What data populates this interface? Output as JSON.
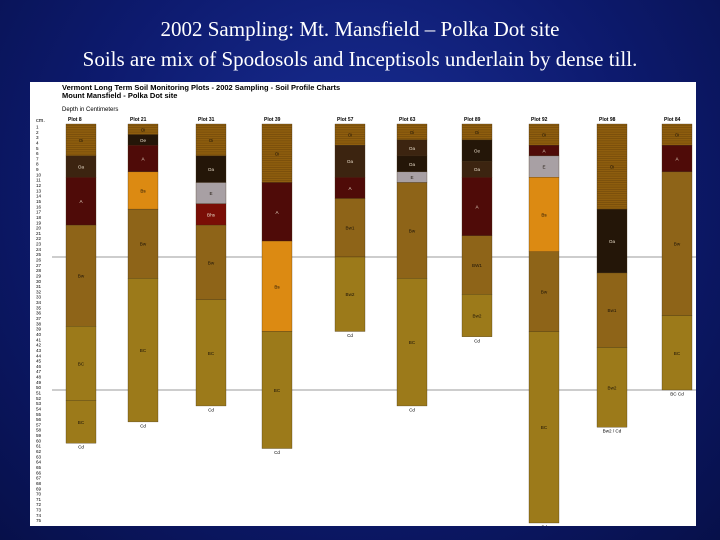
{
  "slide": {
    "title_line1": "2002 Sampling: Mt. Mansfield – Polka Dot site",
    "title_line2": "Soils are mix of Spodosols and Inceptisols underlain by dense till."
  },
  "chart_data": {
    "type": "bar",
    "title_line1": "Vermont Long Term Soil Monitoring Plots - 2002 Sampling - Soil Profile Charts",
    "title_line2": "Mount Mansfield - Polka Dot site",
    "ylabel": "Depth in Centimeters",
    "y_axis_header": "cm.",
    "ylim": [
      0,
      75
    ],
    "y_ticks": [
      "1",
      "2",
      "3",
      "4",
      "5",
      "6",
      "7",
      "8",
      "9",
      "10",
      "11",
      "12",
      "13",
      "14",
      "15",
      "16",
      "17",
      "18",
      "19",
      "20",
      "21",
      "22",
      "23",
      "24",
      "25",
      "26",
      "27",
      "28",
      "29",
      "30",
      "31",
      "32",
      "33",
      "34",
      "35",
      "36",
      "37",
      "38",
      "39",
      "40",
      "41",
      "42",
      "43",
      "44",
      "45",
      "46",
      "47",
      "48",
      "49",
      "50",
      "51",
      "52",
      "53",
      "54",
      "55",
      "56",
      "57",
      "58",
      "59",
      "60",
      "61",
      "62",
      "63",
      "64",
      "65",
      "66",
      "67",
      "68",
      "69",
      "70",
      "71",
      "72",
      "73",
      "74",
      "75"
    ],
    "reference_lines": [
      25,
      50
    ],
    "colors": {
      "Oi": "#8f5e0e",
      "Oe": "#241608",
      "Oa": "#3c2410",
      "A": "#4f0b08",
      "E": "#a8a0a4",
      "Bhs": "#7a0e06",
      "Bs": "#dc8a12",
      "Bw": "#8e6418",
      "BC": "#9c7a1a",
      "Cd": "#ffffff"
    },
    "series": [
      {
        "name": "Plot 8",
        "horizons": [
          {
            "label": "Oi",
            "color": "Oi",
            "top": 0,
            "bottom": 6
          },
          {
            "label": "Oa",
            "color": "Oa",
            "top": 6,
            "bottom": 10
          },
          {
            "label": "A",
            "color": "A",
            "top": 10,
            "bottom": 19
          },
          {
            "label": "Bw",
            "color": "Bw",
            "top": 19,
            "bottom": 38
          },
          {
            "label": "BC",
            "color": "BC",
            "top": 38,
            "bottom": 52
          },
          {
            "label": "BC",
            "color": "BC",
            "top": 52,
            "bottom": 60
          }
        ],
        "base_label": "Cd"
      },
      {
        "name": "Plot 21",
        "horizons": [
          {
            "label": "Oi",
            "color": "Oi",
            "top": 0,
            "bottom": 2
          },
          {
            "label": "Oe",
            "color": "Oe",
            "top": 2,
            "bottom": 4
          },
          {
            "label": "A",
            "color": "A",
            "top": 4,
            "bottom": 9
          },
          {
            "label": "Bs",
            "color": "Bs",
            "top": 9,
            "bottom": 16
          },
          {
            "label": "Bw",
            "color": "Bw",
            "top": 16,
            "bottom": 29
          },
          {
            "label": "BC",
            "color": "BC",
            "top": 29,
            "bottom": 56
          }
        ],
        "base_label": "Cd"
      },
      {
        "name": "Plot 31",
        "horizons": [
          {
            "label": "Oi",
            "color": "Oi",
            "top": 0,
            "bottom": 6
          },
          {
            "label": "Oa",
            "color": "Oe",
            "top": 6,
            "bottom": 11
          },
          {
            "label": "E",
            "color": "E",
            "top": 11,
            "bottom": 15
          },
          {
            "label": "Bhs",
            "color": "Bhs",
            "top": 15,
            "bottom": 19
          },
          {
            "label": "Bw",
            "color": "Bw",
            "top": 19,
            "bottom": 33
          },
          {
            "label": "BC",
            "color": "BC",
            "top": 33,
            "bottom": 53
          }
        ],
        "base_label": "Cd"
      },
      {
        "name": "Plot 39",
        "horizons": [
          {
            "label": "Oi",
            "color": "Oi",
            "top": 0,
            "bottom": 11
          },
          {
            "label": "A",
            "color": "A",
            "top": 11,
            "bottom": 22
          },
          {
            "label": "Bs",
            "color": "Bs",
            "top": 22,
            "bottom": 39
          },
          {
            "label": "BC",
            "color": "BC",
            "top": 39,
            "bottom": 61
          }
        ],
        "base_label": "Cd"
      },
      {
        "name": "Plot 57",
        "horizons": [
          {
            "label": "Oi",
            "color": "Oi",
            "top": 0,
            "bottom": 4
          },
          {
            "label": "Oa",
            "color": "Oa",
            "top": 4,
            "bottom": 10
          },
          {
            "label": "A",
            "color": "A",
            "top": 10,
            "bottom": 14
          },
          {
            "label": "Bw1",
            "color": "Bw",
            "top": 14,
            "bottom": 25
          },
          {
            "label": "Bw2",
            "color": "BC",
            "top": 25,
            "bottom": 39
          }
        ],
        "base_label": "Cd"
      },
      {
        "name": "Plot 63",
        "horizons": [
          {
            "label": "Oi",
            "color": "Oi",
            "top": 0,
            "bottom": 3
          },
          {
            "label": "Oa",
            "color": "Oa",
            "top": 3,
            "bottom": 6
          },
          {
            "label": "Oa",
            "color": "Oe",
            "top": 6,
            "bottom": 9
          },
          {
            "label": "E",
            "color": "E",
            "top": 9,
            "bottom": 11
          },
          {
            "label": "Bw",
            "color": "Bw",
            "top": 11,
            "bottom": 29
          },
          {
            "label": "BC",
            "color": "BC",
            "top": 29,
            "bottom": 53
          }
        ],
        "base_label": "Cd"
      },
      {
        "name": "Plot 89",
        "horizons": [
          {
            "label": "Oi",
            "color": "Oi",
            "top": 0,
            "bottom": 3
          },
          {
            "label": "Oe",
            "color": "Oe",
            "top": 3,
            "bottom": 7
          },
          {
            "label": "Oa",
            "color": "Oa",
            "top": 7,
            "bottom": 10
          },
          {
            "label": "A",
            "color": "A",
            "top": 10,
            "bottom": 21
          },
          {
            "label": "BW1",
            "color": "Bw",
            "top": 21,
            "bottom": 32
          },
          {
            "label": "Bw2",
            "color": "BC",
            "top": 32,
            "bottom": 40
          }
        ],
        "base_label": "Cd"
      },
      {
        "name": "Plot 92",
        "horizons": [
          {
            "label": "Oi",
            "color": "Oi",
            "top": 0,
            "bottom": 4
          },
          {
            "label": "A",
            "color": "A",
            "top": 4,
            "bottom": 6
          },
          {
            "label": "E",
            "color": "E",
            "top": 6,
            "bottom": 10
          },
          {
            "label": "Bs",
            "color": "Bs",
            "top": 10,
            "bottom": 24
          },
          {
            "label": "Bw",
            "color": "Bw",
            "top": 24,
            "bottom": 39
          },
          {
            "label": "BC",
            "color": "BC",
            "top": 39,
            "bottom": 75
          }
        ],
        "base_label": "Cd"
      },
      {
        "name": "Plot 98",
        "horizons": [
          {
            "label": "Oi",
            "color": "Oi",
            "top": 0,
            "bottom": 16
          },
          {
            "label": "Oa",
            "color": "Oe",
            "top": 16,
            "bottom": 28
          },
          {
            "label": "Bw1",
            "color": "Bw",
            "top": 28,
            "bottom": 42
          },
          {
            "label": "Bw2",
            "color": "BC",
            "top": 42,
            "bottom": 57
          }
        ],
        "base_label": "Bw2 / Cd"
      },
      {
        "name": "Plot 84",
        "horizons": [
          {
            "label": "Oi",
            "color": "Oi",
            "top": 0,
            "bottom": 4
          },
          {
            "label": "A",
            "color": "A",
            "top": 4,
            "bottom": 9
          },
          {
            "label": "Bw",
            "color": "Bw",
            "top": 9,
            "bottom": 36
          },
          {
            "label": "BC",
            "color": "BC",
            "top": 36,
            "bottom": 50
          }
        ],
        "base_label": "BC Cd"
      }
    ]
  }
}
